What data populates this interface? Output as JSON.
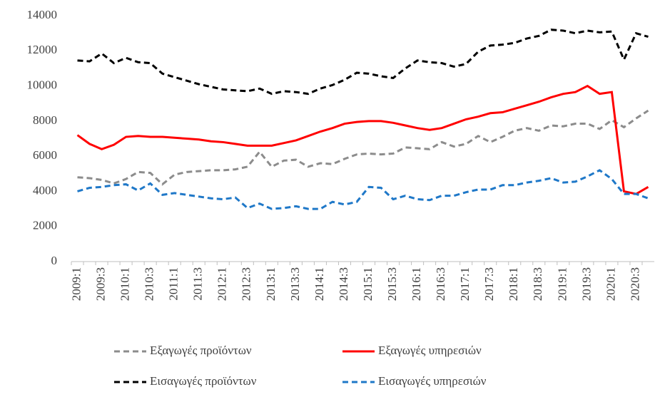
{
  "chart_data": {
    "type": "line",
    "categories": [
      "2009:1",
      null,
      "2009:3",
      null,
      "2010:1",
      null,
      "2010:3",
      null,
      "2011:1",
      null,
      "2011:3",
      null,
      "2012:1",
      null,
      "2012:3",
      null,
      "2013:1",
      null,
      "2013:3",
      null,
      "2014:1",
      null,
      "2014:3",
      null,
      "2015:1",
      null,
      "2015:3",
      null,
      "2016:1",
      null,
      "2016:3",
      null,
      "2017:1",
      null,
      "2017:3",
      null,
      "2018:1",
      null,
      "2018:3",
      null,
      "2019:1",
      null,
      "2019:3",
      null,
      "2020:1",
      null,
      "2020:3",
      null
    ],
    "series": [
      {
        "name": "Εξαγωγές προϊόντων",
        "color": "#8c8c8c",
        "dashed": true,
        "values": [
          4800,
          4750,
          4650,
          4450,
          4700,
          5100,
          5050,
          4400,
          4950,
          5100,
          5150,
          5200,
          5200,
          5250,
          5400,
          6250,
          5400,
          5750,
          5800,
          5400,
          5600,
          5550,
          5850,
          6100,
          6150,
          6100,
          6150,
          6500,
          6450,
          6400,
          6800,
          6550,
          6700,
          7150,
          6800,
          7100,
          7450,
          7600,
          7450,
          7750,
          7700,
          7850,
          7850,
          7550,
          8050,
          7650,
          8150,
          8600
        ]
      },
      {
        "name": "Εξαγωγές υπηρεσιών",
        "color": "#ff0000",
        "dashed": false,
        "values": [
          7200,
          6700,
          6400,
          6650,
          7100,
          7150,
          7100,
          7100,
          7050,
          7000,
          6950,
          6850,
          6800,
          6700,
          6600,
          6600,
          6600,
          6750,
          6900,
          7150,
          7400,
          7600,
          7850,
          7950,
          8000,
          8000,
          7900,
          7750,
          7600,
          7500,
          7600,
          7850,
          8100,
          8250,
          8450,
          8500,
          8700,
          8900,
          9100,
          9350,
          9550,
          9650,
          10000,
          9550,
          9650,
          4000,
          3850,
          4250
        ]
      },
      {
        "name": "Εισαγωγές προϊόντων",
        "color": "#000000",
        "dashed": true,
        "values": [
          11450,
          11400,
          11850,
          11300,
          11600,
          11350,
          11300,
          10700,
          10500,
          10300,
          10100,
          9950,
          9800,
          9750,
          9700,
          9850,
          9550,
          9700,
          9650,
          9550,
          9850,
          10050,
          10350,
          10750,
          10700,
          10550,
          10450,
          11000,
          11450,
          11350,
          11300,
          11100,
          11250,
          11950,
          12300,
          12350,
          12450,
          12700,
          12850,
          13200,
          13150,
          13000,
          13150,
          13050,
          13100,
          11500,
          13000,
          12800
        ]
      },
      {
        "name": "Εισαγωγές υπηρεσιών",
        "color": "#1f78c8",
        "dashed": true,
        "values": [
          4000,
          4200,
          4250,
          4350,
          4400,
          4050,
          4450,
          3800,
          3900,
          3800,
          3700,
          3600,
          3550,
          3650,
          3050,
          3300,
          3000,
          3050,
          3150,
          3000,
          3000,
          3400,
          3250,
          3400,
          4250,
          4200,
          3550,
          3750,
          3550,
          3500,
          3750,
          3750,
          3950,
          4100,
          4100,
          4350,
          4350,
          4500,
          4600,
          4750,
          4500,
          4550,
          4850,
          5200,
          4700,
          3850,
          3850,
          3600
        ]
      }
    ],
    "ylim": [
      0,
      14000
    ],
    "yticks": [
      0,
      2000,
      4000,
      6000,
      8000,
      10000,
      12000,
      14000
    ],
    "grid": false,
    "legend": "bottom"
  }
}
